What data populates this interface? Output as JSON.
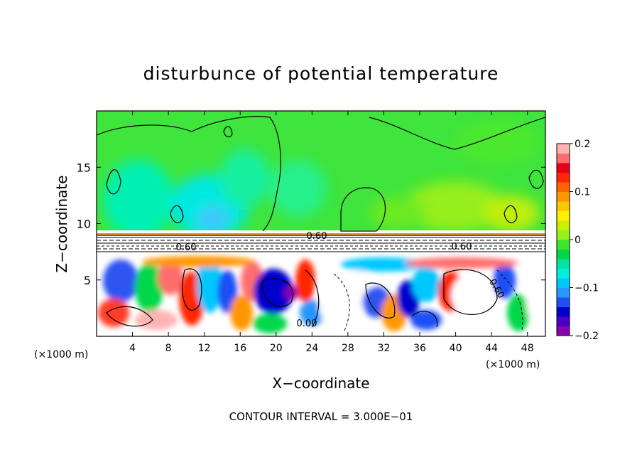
{
  "chart_data": {
    "type": "heatmap",
    "title": "disturbunce of potential temperature",
    "xlabel": "X−coordinate",
    "ylabel": "Z−coordinate",
    "x_unit_left": "(×1000 m)",
    "x_unit_right": "(×1000 m)",
    "xlim": [
      0,
      50
    ],
    "ylim": [
      0,
      20
    ],
    "x_ticks": [
      4,
      8,
      12,
      16,
      20,
      24,
      28,
      32,
      36,
      40,
      44,
      48
    ],
    "x_tick_labels": [
      "4",
      "8",
      "12",
      "16",
      "20",
      "24",
      "28",
      "32",
      "36",
      "40",
      "44",
      "48"
    ],
    "y_ticks": [
      5,
      10,
      15
    ],
    "y_tick_labels": [
      "5",
      "10",
      "15"
    ],
    "colorbar": {
      "range": [
        -0.2,
        0.2
      ],
      "ticks": [
        0.2,
        0.1,
        0,
        -0.1,
        -0.2
      ],
      "tick_labels": [
        "0.2",
        "0.1",
        "0",
        "−0.1",
        "−0.2"
      ],
      "colors": [
        "#8B00B0",
        "#4B00C8",
        "#0000CD",
        "#1E50F5",
        "#2896FF",
        "#00C8FF",
        "#00F0DC",
        "#00E6A0",
        "#00D84A",
        "#3CE628",
        "#96F01E",
        "#C8F000",
        "#FFF000",
        "#FFC800",
        "#FF9600",
        "#FF6400",
        "#FF2800",
        "#E6001E",
        "#FF6E6E",
        "#FFB4B4"
      ]
    },
    "contour_labels": [
      "0.60",
      "0.60",
      "0.60",
      "0.60",
      "0.00"
    ],
    "contour_interval": "CONTOUR INTERVAL =  3.000E−01",
    "grid": false,
    "legend": "colorbar right"
  }
}
